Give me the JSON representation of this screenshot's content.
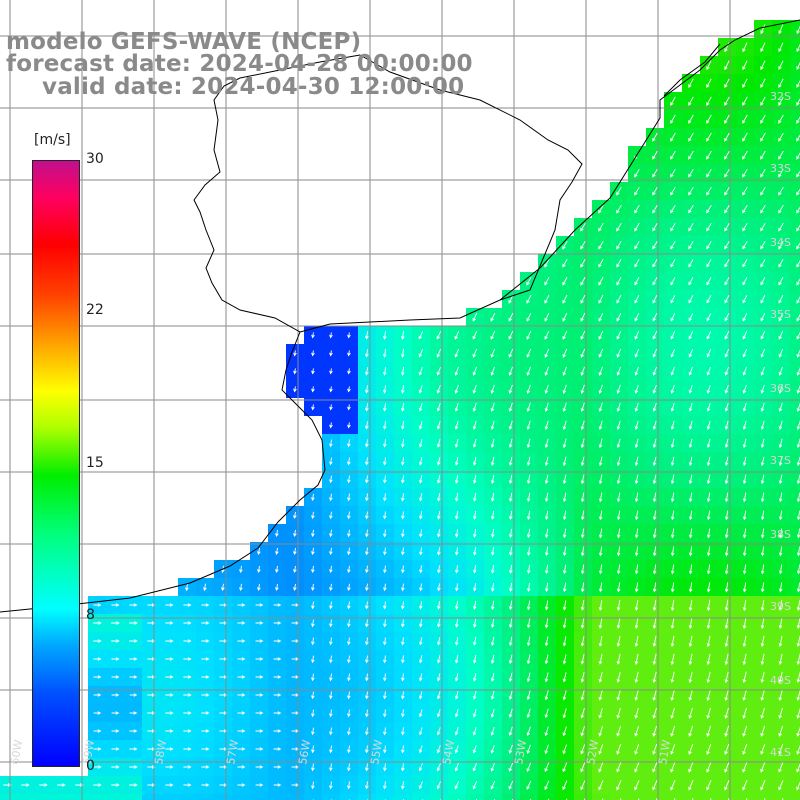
{
  "title": {
    "line1": "modelo GEFS-WAVE (NCEP)",
    "line2": "forecast date: 2024-04-28 00:00:00",
    "line3": "valid date: 2024-04-30 12:00:00"
  },
  "colorbar": {
    "unit": "[m/s]",
    "ticks": [
      "30",
      "22",
      "15",
      "8",
      "0"
    ],
    "colors": [
      "#0000ff",
      "#00a8ff",
      "#00ffff",
      "#00ee00",
      "#ffff00",
      "#ff0000",
      "#c0108c"
    ]
  },
  "grid_labels": {
    "lat_right": [
      "32S",
      "33S",
      "34S",
      "35S",
      "36S",
      "37S",
      "38S",
      "39S",
      "40S",
      "41S"
    ],
    "lon_bottom": [
      "60W",
      "59W",
      "58W",
      "57W",
      "56W",
      "55W",
      "54W",
      "53W",
      "52W",
      "51W"
    ]
  },
  "field": {
    "quantity": "wind speed",
    "arrow_color": "#ffffff"
  }
}
